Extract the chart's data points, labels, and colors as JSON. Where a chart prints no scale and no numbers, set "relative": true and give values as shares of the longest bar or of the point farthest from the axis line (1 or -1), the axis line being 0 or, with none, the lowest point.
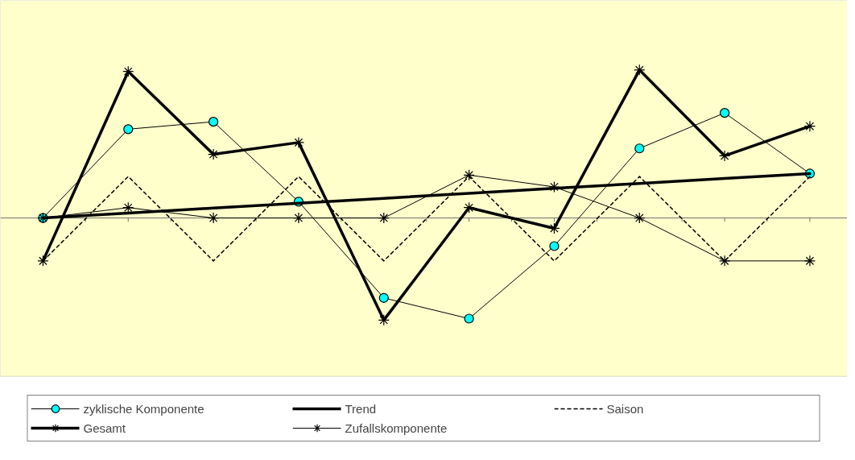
{
  "chart_data": {
    "type": "line",
    "relative": true,
    "categories": [
      null,
      null,
      null,
      null,
      null,
      null,
      null,
      null,
      null,
      null
    ],
    "tick_labels": false,
    "grid": false,
    "legend": "bottom",
    "series": [
      {
        "name": "zyklische Komponente",
        "color": "#000000",
        "marker": "circle",
        "line_style": "solid",
        "values": [
          0,
          0.6,
          0.65,
          0.11,
          -0.54,
          -0.68,
          -0.19,
          0.47,
          0.71,
          0.3
        ]
      },
      {
        "name": "Trend",
        "color": "#000000",
        "marker": "none",
        "line_style": "solid",
        "values": [
          0,
          0.033,
          0.067,
          0.1,
          0.133,
          0.167,
          0.2,
          0.233,
          0.267,
          0.3
        ]
      },
      {
        "name": "Saison",
        "color": "#000000",
        "marker": "none",
        "line_style": "dashed",
        "values": [
          -0.29,
          0.28,
          -0.29,
          0.28,
          -0.29,
          0.28,
          -0.29,
          0.28,
          -0.29,
          0.28
        ]
      },
      {
        "name": "Gesamt",
        "color": "#000000",
        "marker": "cross",
        "line_style": "solid",
        "values": [
          -0.29,
          0.99,
          0.43,
          0.51,
          -0.69,
          0.07,
          -0.07,
          1.0,
          0.42,
          0.62
        ]
      },
      {
        "name": "Zufallskomponente",
        "color": "#000000",
        "marker": "cross",
        "line_style": "solid",
        "values": [
          0,
          0.07,
          0,
          0,
          0,
          0.29,
          0.21,
          0,
          -0.29,
          -0.29
        ]
      }
    ]
  }
}
